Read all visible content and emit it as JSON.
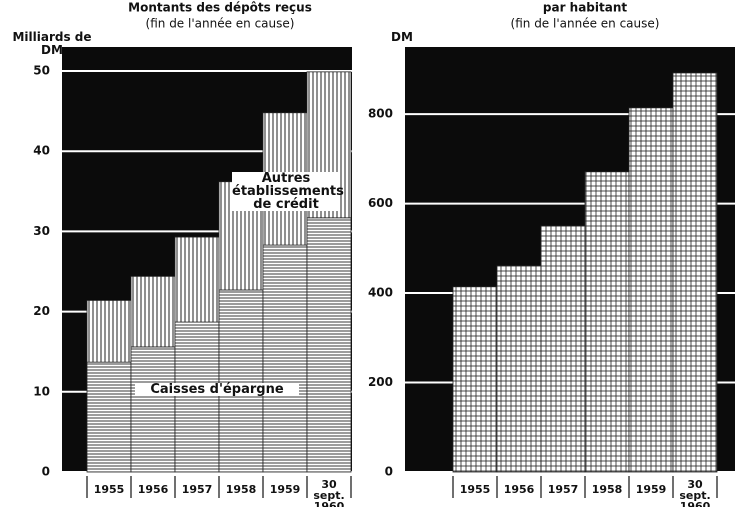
{
  "chart_data": [
    {
      "type": "bar",
      "stacked": true,
      "title": "Montants des dépôts reçus",
      "subtitle": "(fin de l'année en cause)",
      "y_label": "Milliards de DM",
      "categories": [
        "1955",
        "1956",
        "1957",
        "1958",
        "1959",
        "30 sept. 1960"
      ],
      "series": [
        {
          "name": "Caisses d'épargne",
          "color": "#ffffff",
          "hatch": "horizontal",
          "values": [
            13.7,
            15.6,
            18.7,
            22.7,
            28.3,
            31.7
          ]
        },
        {
          "name": "Autres établissements de crédit",
          "color": "#ffffff",
          "hatch": "vertical",
          "values": [
            7.7,
            8.8,
            10.6,
            13.5,
            16.5,
            18.2
          ]
        }
      ],
      "ylim": [
        0,
        53
      ],
      "yticks": [
        0,
        10,
        20,
        30,
        40,
        50
      ],
      "grid": true
    },
    {
      "type": "bar",
      "title": "par habitant",
      "subtitle": "(fin de l'année en cause)",
      "y_label": "DM",
      "categories": [
        "1955",
        "1956",
        "1957",
        "1958",
        "1959",
        "30 sept. 1960"
      ],
      "values": [
        414,
        461,
        550,
        671,
        814,
        892
      ],
      "color": "#ffffff",
      "hatch": "grid",
      "ylim": [
        0,
        950
      ],
      "yticks": [
        0,
        200,
        400,
        600,
        800
      ],
      "grid": true
    }
  ]
}
